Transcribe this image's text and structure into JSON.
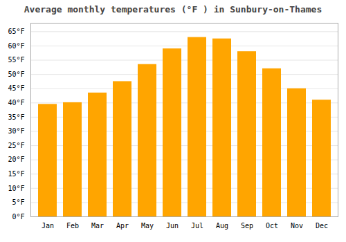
{
  "chart_data": {
    "type": "bar",
    "title": "Average monthly temperatures (°F ) in Sunbury-on-Thames",
    "categories": [
      "Jan",
      "Feb",
      "Mar",
      "Apr",
      "May",
      "Jun",
      "Jul",
      "Aug",
      "Sep",
      "Oct",
      "Nov",
      "Dec"
    ],
    "values": [
      39.5,
      40.1,
      43.5,
      47.5,
      53.5,
      59.0,
      63.0,
      62.5,
      58.0,
      52.0,
      45.0,
      41.0
    ],
    "color": "#FFA500",
    "ylim": [
      0,
      68
    ],
    "yticks": [
      {
        "value": 0,
        "label": "0°F"
      },
      {
        "value": 5,
        "label": "5°F"
      },
      {
        "value": 10,
        "label": "10°F"
      },
      {
        "value": 15,
        "label": "15°F"
      },
      {
        "value": 20,
        "label": "20°F"
      },
      {
        "value": 25,
        "label": "25°F"
      },
      {
        "value": 30,
        "label": "30°F"
      },
      {
        "value": 35,
        "label": "35°F"
      },
      {
        "value": 40,
        "label": "40°F"
      },
      {
        "value": 45,
        "label": "45°F"
      },
      {
        "value": 50,
        "label": "50°F"
      },
      {
        "value": 55,
        "label": "55°F"
      },
      {
        "value": 60,
        "label": "60°F"
      },
      {
        "value": 65,
        "label": "65°F"
      }
    ],
    "grid": true
  }
}
